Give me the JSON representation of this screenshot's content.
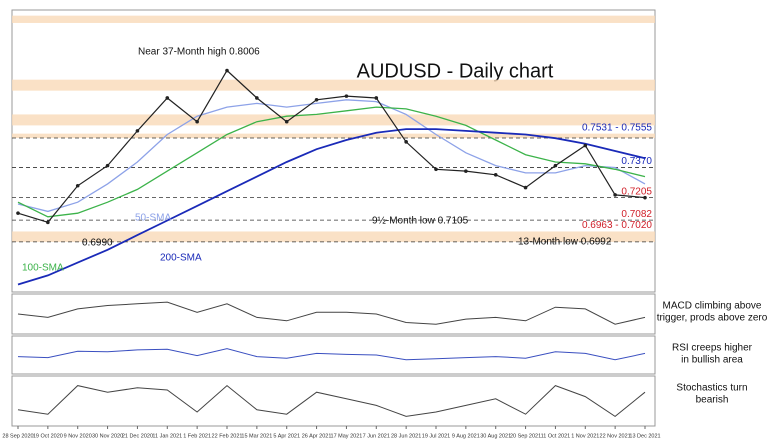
{
  "chart_data": {
    "type": "line",
    "title": "AUDUSD - Daily chart",
    "categories": [
      "28 Sep 2020",
      "19 Oct 2020",
      "9 Nov 2020",
      "30 Nov 2020",
      "21 Dec 2020",
      "11 Jan 2021",
      "1 Feb 2021",
      "22 Feb 2021",
      "15 Mar 2021",
      "5 Apr 2021",
      "26 Apr 2021",
      "17 May 2021",
      "7 Jun 2021",
      "28 Jun 2021",
      "19 Jul 2021",
      "9 Aug 2021",
      "30 Aug 2021",
      "20 Sep 2021",
      "11 Oct 2021",
      "1 Nov 2021",
      "22 Nov 2021",
      "13 Dec 2021"
    ],
    "price": {
      "color": "#222222",
      "values": [
        0.712,
        0.707,
        0.727,
        0.738,
        0.757,
        0.775,
        0.762,
        0.79,
        0.775,
        0.762,
        0.774,
        0.776,
        0.775,
        0.751,
        0.736,
        0.735,
        0.733,
        0.726,
        0.738,
        0.749,
        0.722,
        0.7205
      ]
    },
    "series": [
      {
        "name": "50-SMA",
        "color": "#8da2e8",
        "values": [
          0.717,
          0.713,
          0.718,
          0.728,
          0.74,
          0.755,
          0.765,
          0.77,
          0.772,
          0.77,
          0.772,
          0.774,
          0.773,
          0.766,
          0.755,
          0.745,
          0.738,
          0.734,
          0.734,
          0.738,
          0.737,
          0.728
        ]
      },
      {
        "name": "100-SMA",
        "color": "#3cb34a",
        "values": [
          0.718,
          0.71,
          0.712,
          0.718,
          0.725,
          0.735,
          0.745,
          0.755,
          0.762,
          0.765,
          0.766,
          0.768,
          0.77,
          0.769,
          0.765,
          0.76,
          0.752,
          0.744,
          0.74,
          0.739,
          0.736,
          0.732
        ]
      },
      {
        "name": "200-SMA",
        "color": "#1a2ab8",
        "values": [
          0.673,
          0.678,
          0.685,
          0.692,
          0.7,
          0.708,
          0.716,
          0.724,
          0.732,
          0.74,
          0.747,
          0.752,
          0.756,
          0.758,
          0.758,
          0.757,
          0.756,
          0.755,
          0.753,
          0.75,
          0.746,
          0.742
        ]
      }
    ],
    "ylim": [
      0.67,
      0.822
    ],
    "zones": [
      [
        0.816,
        0.82
      ],
      [
        0.779,
        0.785
      ],
      [
        0.76,
        0.766
      ]
    ],
    "levels": [
      {
        "low": 0.7531,
        "high": 0.7555,
        "label": "0.7531 - 0.7555",
        "color": "#1a2ab8"
      },
      {
        "low": 0.737,
        "high": 0.737,
        "label": "0.7370",
        "color": "#1a2ab8"
      },
      {
        "low": 0.7205,
        "high": 0.7205,
        "label": "0.7205",
        "color": "#d0202a"
      },
      {
        "low": 0.7082,
        "high": 0.7082,
        "label": "0.7082",
        "color": "#d0202a"
      },
      {
        "low": 0.6963,
        "high": 0.702,
        "label": "0.6963 - 0.7020",
        "color": "#d0202a"
      }
    ],
    "annotations": [
      "Near 37-Month high 0.8006",
      "9½-Month low 0.7105",
      "0.6990",
      "13-Month low 0.6992"
    ],
    "panels": [
      {
        "name": "MACD",
        "ylim": [
          -0.01,
          0.01
        ],
        "color": "#444444",
        "values": [
          0.0,
          -0.002,
          0.003,
          0.005,
          0.006,
          0.007,
          0.001,
          0.006,
          -0.002,
          -0.004,
          0.001,
          0.001,
          0.0,
          -0.005,
          -0.006,
          -0.003,
          -0.002,
          -0.004,
          0.004,
          0.003,
          -0.006,
          -0.002
        ],
        "note": [
          "MACD climbing above",
          "trigger, prods above zero"
        ]
      },
      {
        "name": "RSI",
        "ylim": [
          0,
          100
        ],
        "color": "#3a4fc0",
        "values": [
          45,
          42,
          62,
          60,
          66,
          68,
          48,
          70,
          45,
          40,
          55,
          52,
          50,
          35,
          38,
          42,
          45,
          40,
          60,
          55,
          35,
          55
        ],
        "note": [
          "RSI creeps higher",
          "in bullish area"
        ]
      },
      {
        "name": "Stochastics",
        "ylim": [
          0,
          100
        ],
        "color": "#444444",
        "values": [
          30,
          20,
          85,
          70,
          80,
          75,
          25,
          85,
          30,
          20,
          70,
          55,
          40,
          15,
          25,
          40,
          55,
          20,
          85,
          60,
          15,
          70
        ],
        "note": [
          "Stochastics turn",
          "bearish"
        ]
      }
    ]
  }
}
